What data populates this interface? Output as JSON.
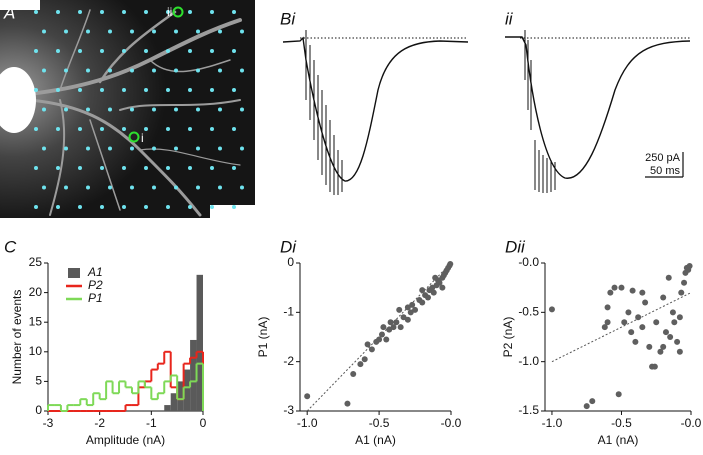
{
  "panel_labels": {
    "a": "A",
    "bi": "Bi",
    "bii": "ii",
    "c": "C",
    "di": "Di",
    "dii": "Dii"
  },
  "image_labels": {
    "i": "i",
    "ii": "ii"
  },
  "scale_bar": {
    "current": "250 pA",
    "time": "50 ms"
  },
  "chart_data": [
    {
      "type": "histogram",
      "xlabel": "Amplitude (nA)",
      "ylabel": "Number of events",
      "bins": [
        -3,
        -2.875,
        -2.75,
        -2.625,
        -2.5,
        -2.375,
        -2.25,
        -2.125,
        -2,
        -1.875,
        -1.75,
        -1.625,
        -1.5,
        -1.375,
        -1.25,
        -1.125,
        -1,
        -0.875,
        -0.75,
        -0.625,
        -0.5,
        -0.375,
        -0.25,
        -0.125,
        0
      ],
      "series": [
        {
          "name": "A1",
          "color": "#5a5a5a",
          "style": "filled",
          "values": [
            0,
            0,
            0,
            0,
            0,
            0,
            0,
            0,
            0,
            0,
            0,
            0,
            0,
            0,
            0,
            0,
            0,
            0,
            1,
            3,
            5,
            7,
            12,
            23
          ]
        },
        {
          "name": "P2",
          "color": "#e8251c",
          "style": "step",
          "values": [
            0,
            0,
            0,
            0,
            0,
            0,
            0,
            0,
            0,
            0,
            0,
            0,
            1,
            1,
            4,
            5,
            7,
            8,
            10,
            4,
            2,
            8,
            9,
            10
          ]
        },
        {
          "name": "P1",
          "color": "#7ed957",
          "style": "step",
          "values": [
            1,
            1,
            0,
            1,
            1,
            2,
            1,
            3,
            2,
            5,
            3,
            5,
            4,
            3,
            5,
            4,
            2,
            3,
            5,
            6,
            2,
            4,
            5,
            8
          ]
        }
      ],
      "xlim": [
        -3,
        0
      ],
      "xticks": [
        -3,
        -2,
        -1,
        0
      ],
      "ylim": [
        0,
        25
      ],
      "yticks": [
        0,
        5,
        10,
        15,
        20,
        25
      ],
      "legend": "upper left"
    },
    {
      "type": "scatter",
      "xlabel": "A1 (nA)",
      "ylabel": "P1 (nA)",
      "color": "#5f5f5f",
      "x": [
        -1.0,
        -0.72,
        -0.68,
        -0.63,
        -0.6,
        -0.55,
        -0.52,
        -0.5,
        -0.48,
        -0.45,
        -0.43,
        -0.4,
        -0.38,
        -0.35,
        -0.33,
        -0.3,
        -0.28,
        -0.27,
        -0.25,
        -0.22,
        -0.2,
        -0.18,
        -0.16,
        -0.15,
        -0.13,
        -0.12,
        -0.1,
        -0.09,
        -0.08,
        -0.06,
        -0.05,
        -0.04,
        -0.03,
        -0.02,
        -0.01,
        -0.005,
        -0.06,
        -0.11,
        -0.2,
        -0.3,
        -0.36,
        -0.42,
        -0.47,
        -0.58
      ],
      "y": [
        -2.7,
        -2.85,
        -2.25,
        -2.05,
        -1.95,
        -1.75,
        -1.6,
        -1.55,
        -1.45,
        -1.55,
        -1.35,
        -1.3,
        -1.2,
        -1.3,
        -1.1,
        -1.15,
        -1.0,
        -0.85,
        -0.95,
        -0.75,
        -0.8,
        -0.65,
        -0.7,
        -0.55,
        -0.5,
        -0.6,
        -0.45,
        -0.35,
        -0.4,
        -0.3,
        -0.25,
        -0.2,
        -0.15,
        -0.1,
        -0.05,
        -0.02,
        -0.5,
        -0.3,
        -0.55,
        -0.9,
        -0.95,
        -1.2,
        -1.3,
        -1.65
      ],
      "trend_line": {
        "x": [
          -1,
          0
        ],
        "y": [
          -3,
          0
        ]
      },
      "xlim": [
        -1.05,
        0
      ],
      "xticks": [
        {
          "value": -1,
          "label": "-1.0"
        },
        -0.5,
        {
          "value": 0,
          "label": "-0.0"
        }
      ],
      "ylim": [
        -3,
        0
      ],
      "yticks": [
        -3,
        -2,
        -1,
        0
      ]
    },
    {
      "type": "scatter",
      "xlabel": "A1 (nA)",
      "ylabel": "P2 (nA)",
      "color": "#5f5f5f",
      "x": [
        -1.0,
        -0.75,
        -0.71,
        -0.52,
        -0.62,
        -0.6,
        -0.58,
        -0.55,
        -0.5,
        -0.48,
        -0.45,
        -0.43,
        -0.4,
        -0.38,
        -0.35,
        -0.33,
        -0.3,
        -0.28,
        -0.26,
        -0.25,
        -0.22,
        -0.2,
        -0.18,
        -0.16,
        -0.15,
        -0.13,
        -0.1,
        -0.08,
        -0.07,
        -0.05,
        -0.04,
        -0.03,
        -0.02,
        -0.01,
        -0.12,
        -0.35,
        -0.42,
        -0.6,
        -0.08,
        -0.2
      ],
      "y": [
        -0.47,
        -1.45,
        -1.4,
        -1.33,
        -0.65,
        -0.45,
        -0.3,
        -0.25,
        -0.25,
        -0.6,
        -0.5,
        -0.7,
        -0.8,
        -0.55,
        -0.65,
        -0.4,
        -0.85,
        -1.05,
        -1.05,
        -0.6,
        -0.9,
        -0.35,
        -0.7,
        -0.15,
        -0.75,
        -0.5,
        -0.8,
        -0.55,
        -0.3,
        -0.2,
        -0.1,
        -0.05,
        -0.07,
        -0.03,
        -0.6,
        -0.3,
        -0.28,
        -0.6,
        -0.9,
        -0.85
      ],
      "trend_line": {
        "x": [
          -1,
          0
        ],
        "y": [
          -1,
          -0.3
        ]
      },
      "xlim": [
        -1.05,
        0
      ],
      "xticks": [
        {
          "value": -1,
          "label": "-1.0"
        },
        -0.5,
        {
          "value": 0,
          "label": "-0.0"
        }
      ],
      "ylim": [
        -1.5,
        0
      ],
      "yticks": [
        -1.5,
        {
          "value": -1,
          "label": "-1.0"
        },
        -0.5,
        {
          "value": 0,
          "label": "-0.0"
        }
      ]
    }
  ]
}
